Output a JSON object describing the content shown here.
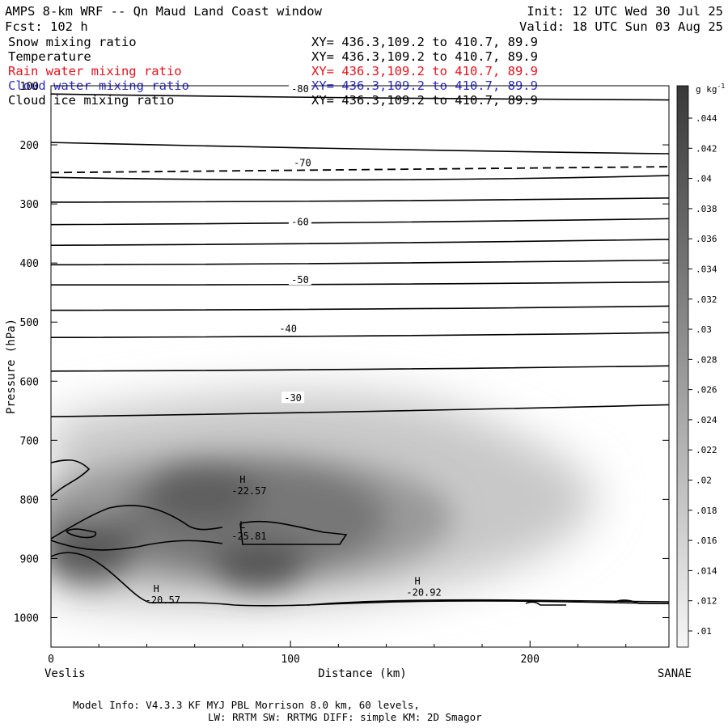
{
  "header": {
    "title": "AMPS 8-km WRF -- Qn Maud Land Coast window",
    "fcst": "Fcst:  102 h",
    "init": "Init: 12 UTC Wed 30 Jul 25",
    "valid": "Valid: 18 UTC Sun 03 Aug 25"
  },
  "fields": [
    {
      "name": "Snow mixing ratio",
      "xy": "XY= 436.3,109.2 to 410.7, 89.9",
      "color": "#000000"
    },
    {
      "name": "Temperature",
      "xy": "XY= 436.3,109.2 to 410.7, 89.9",
      "color": "#000000"
    },
    {
      "name": "Rain water mixing ratio",
      "xy": "XY= 436.3,109.2 to 410.7, 89.9",
      "color": "#e8101a"
    },
    {
      "name": "Cloud water mixing ratio",
      "xy": "XY= 436.3,109.2 to 410.7, 89.9",
      "color": "#2b2bcc"
    },
    {
      "name": "Cloud ice mixing ratio",
      "xy": "XY= 436.3,109.2 to 410.7, 89.9",
      "color": "#000000"
    }
  ],
  "chart_data": {
    "type": "heatmap",
    "xlabel": "Distance (km)",
    "ylabel": "Pressure (hPa)",
    "xlim": [
      0,
      258
    ],
    "ylim": [
      1050,
      100
    ],
    "x_ticks": [
      0,
      100,
      200
    ],
    "y_ticks": [
      100,
      200,
      300,
      400,
      500,
      600,
      700,
      800,
      900,
      1000
    ],
    "x_endpoints": {
      "left": "Veslis",
      "right": "SANAE"
    },
    "colorbar": {
      "unit": "g kg",
      "unit_exp": "-1",
      "levels": [
        ".01",
        ".012",
        ".014",
        ".016",
        ".018",
        ".02",
        ".022",
        ".024",
        ".026",
        ".028",
        ".03",
        ".032",
        ".034",
        ".036",
        ".038",
        ".04",
        ".042",
        ".044"
      ]
    },
    "snow_field": [
      {
        "x": 85,
        "p": 810,
        "value": 0.03
      },
      {
        "x": 90,
        "p": 920,
        "value": 0.04
      },
      {
        "x": 15,
        "p": 880,
        "value": 0.036
      },
      {
        "x": 150,
        "p": 800,
        "value": 0.016
      },
      {
        "x": 225,
        "p": 800,
        "value": 0.01
      }
    ],
    "isotherm_labels": [
      {
        "text": "-80",
        "x": 104,
        "p": 107
      },
      {
        "text": "-70",
        "x": 105,
        "p": 232
      },
      {
        "text": "-60",
        "x": 104,
        "p": 332
      },
      {
        "text": "-50",
        "x": 104,
        "p": 430
      },
      {
        "text": "-40",
        "x": 99,
        "p": 513
      },
      {
        "text": "-30",
        "x": 101,
        "p": 630
      }
    ],
    "isotherms": [
      {
        "p0": 114,
        "p1": 124
      },
      {
        "p0": 196,
        "p1": 215
      },
      {
        "p0": 255,
        "p1": 252,
        "mid": 265
      },
      {
        "p0": 297,
        "p1": 290
      },
      {
        "p0": 335,
        "p1": 325
      },
      {
        "p0": 370,
        "p1": 360
      },
      {
        "p0": 403,
        "p1": 395
      },
      {
        "p0": 437,
        "p1": 432
      },
      {
        "p0": 480,
        "p1": 473
      },
      {
        "p0": 526,
        "p1": 518
      },
      {
        "p0": 583,
        "p1": 574
      },
      {
        "p0": 660,
        "p1": 640
      }
    ],
    "tropopause_dashed": {
      "p0": 247,
      "p1": 237
    },
    "extrema": [
      {
        "kind": "H",
        "value": "-22.57",
        "x": 80,
        "p": 783
      },
      {
        "kind": "L",
        "value": "-25.81",
        "x": 80,
        "p": 860
      },
      {
        "kind": "H",
        "value": "-20.92",
        "x": 153,
        "p": 955
      },
      {
        "kind": "H",
        "value": "-20.57",
        "x": 44,
        "p": 968
      }
    ]
  },
  "footer": {
    "line1": "Model Info: V4.3.3   KF      MYJ PBL  Morrison            8.0 km,  60 levels,",
    "line2": "LW: RRTM SW: RRTMG   DIFF: simple KM: 2D Smagor"
  }
}
